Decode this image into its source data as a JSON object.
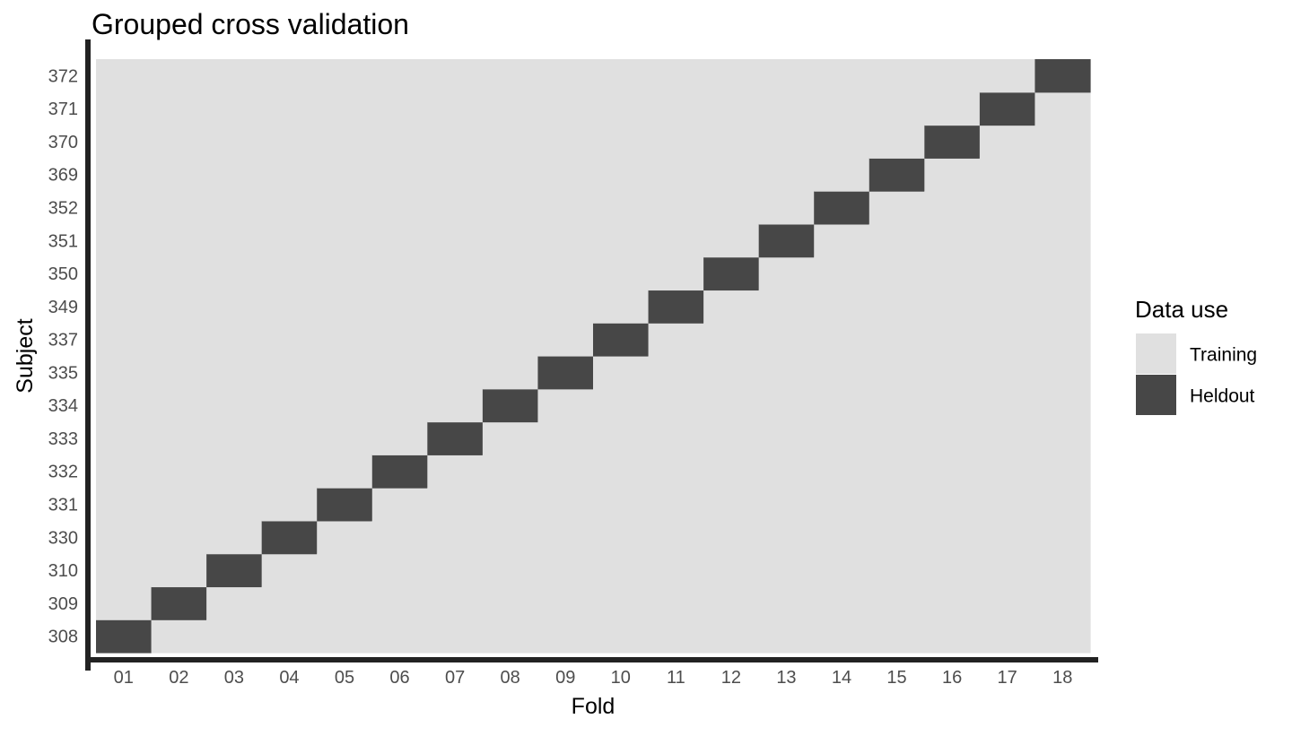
{
  "chart_data": {
    "type": "heatmap",
    "title": "Grouped cross validation",
    "xlabel": "Fold",
    "ylabel": "Subject",
    "x": [
      "01",
      "02",
      "03",
      "04",
      "05",
      "06",
      "07",
      "08",
      "09",
      "10",
      "11",
      "12",
      "13",
      "14",
      "15",
      "16",
      "17",
      "18"
    ],
    "y": [
      "308",
      "309",
      "310",
      "330",
      "331",
      "332",
      "333",
      "334",
      "335",
      "337",
      "349",
      "350",
      "351",
      "352",
      "369",
      "370",
      "371",
      "372"
    ],
    "fill_default": "Training",
    "cells": [
      {
        "fold": "01",
        "subject": "308",
        "use": "Heldout"
      },
      {
        "fold": "02",
        "subject": "309",
        "use": "Heldout"
      },
      {
        "fold": "03",
        "subject": "310",
        "use": "Heldout"
      },
      {
        "fold": "04",
        "subject": "330",
        "use": "Heldout"
      },
      {
        "fold": "05",
        "subject": "331",
        "use": "Heldout"
      },
      {
        "fold": "06",
        "subject": "332",
        "use": "Heldout"
      },
      {
        "fold": "07",
        "subject": "333",
        "use": "Heldout"
      },
      {
        "fold": "08",
        "subject": "334",
        "use": "Heldout"
      },
      {
        "fold": "09",
        "subject": "335",
        "use": "Heldout"
      },
      {
        "fold": "10",
        "subject": "337",
        "use": "Heldout"
      },
      {
        "fold": "11",
        "subject": "349",
        "use": "Heldout"
      },
      {
        "fold": "12",
        "subject": "350",
        "use": "Heldout"
      },
      {
        "fold": "13",
        "subject": "351",
        "use": "Heldout"
      },
      {
        "fold": "14",
        "subject": "352",
        "use": "Heldout"
      },
      {
        "fold": "15",
        "subject": "369",
        "use": "Heldout"
      },
      {
        "fold": "16",
        "subject": "370",
        "use": "Heldout"
      },
      {
        "fold": "17",
        "subject": "371",
        "use": "Heldout"
      },
      {
        "fold": "18",
        "subject": "372",
        "use": "Heldout"
      }
    ],
    "legend": {
      "title": "Data use",
      "position": "right",
      "entries": [
        {
          "label": "Training",
          "color": "#e0e0e0"
        },
        {
          "label": "Heldout",
          "color": "#474747"
        }
      ]
    },
    "grid": false
  }
}
